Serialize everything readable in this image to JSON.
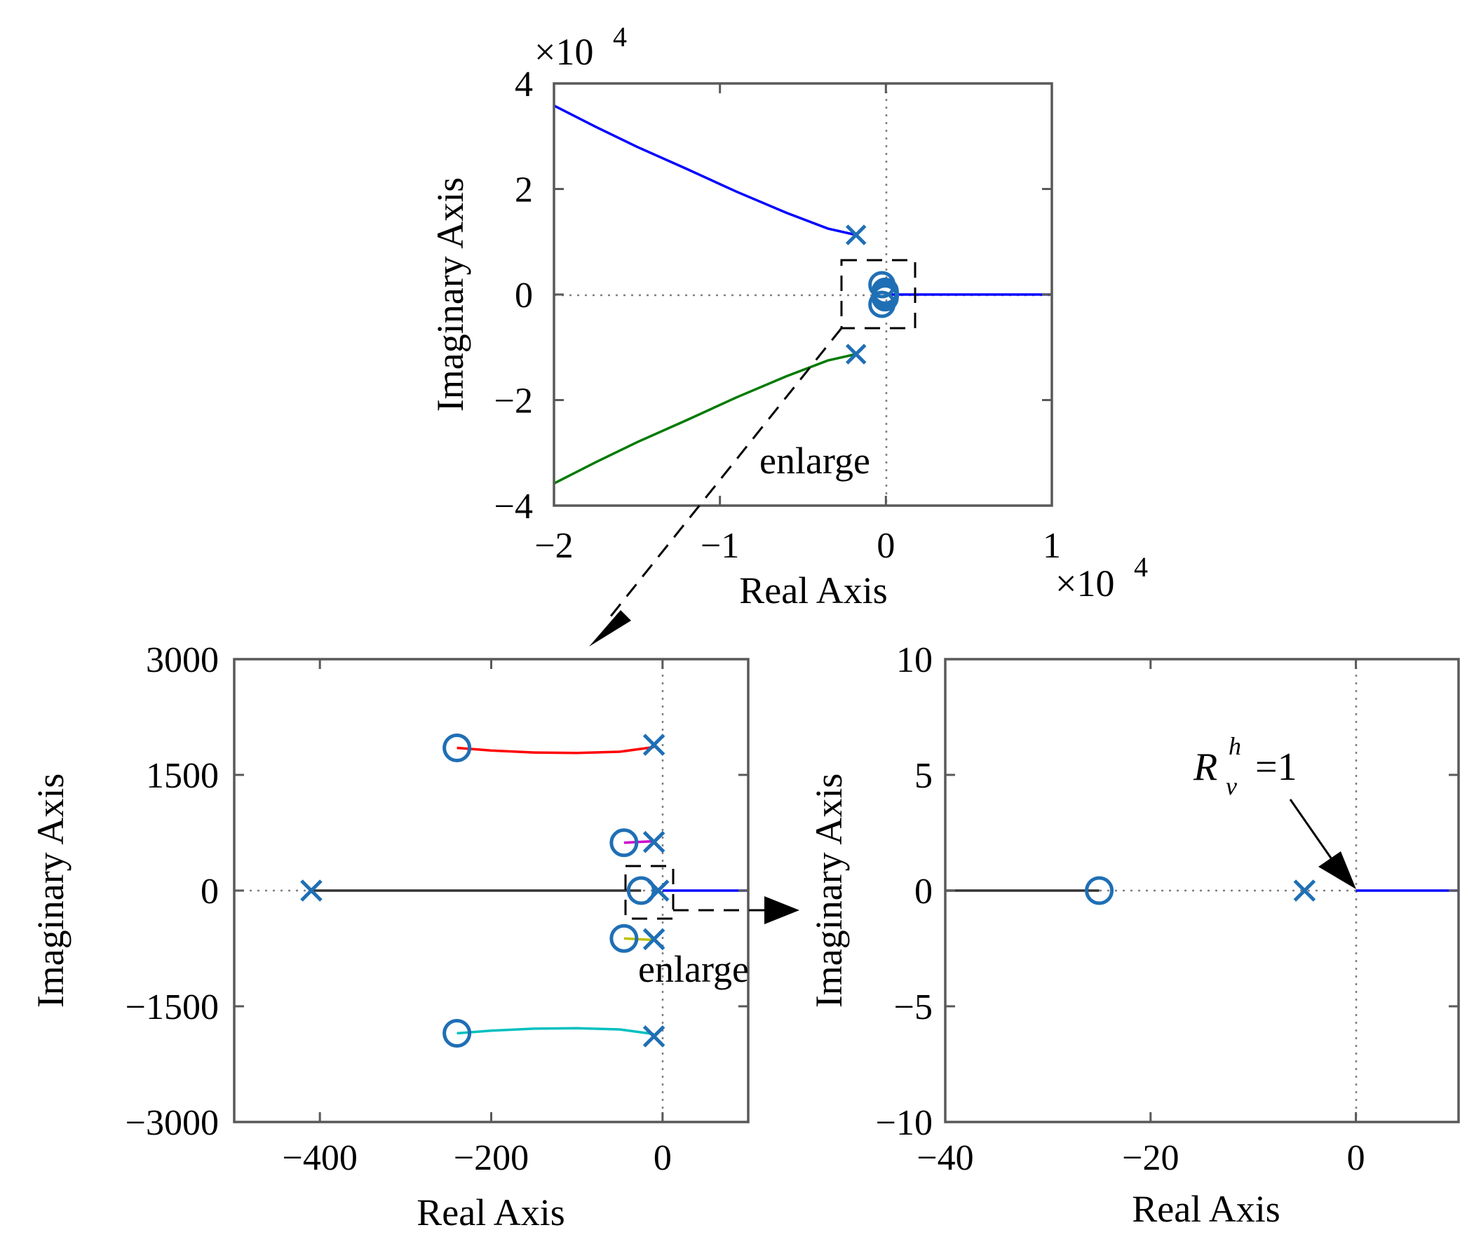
{
  "colors": {
    "marker": "#1f6fb5",
    "blue": "#0000ff",
    "green": "#007a00",
    "red": "#ff0000",
    "magenta": "#cc00cc",
    "yellow": "#bfbf00",
    "cyan": "#00bfbf",
    "black": "#333333"
  },
  "chart_data": [
    {
      "type": "root-locus",
      "id": "top",
      "xlabel": "Real Axis",
      "ylabel": "Imaginary Axis",
      "x_multiplier": "×10",
      "x_multiplier_exp": "4",
      "y_multiplier": "×10",
      "y_multiplier_exp": "4",
      "xlim": [
        -20000,
        10000
      ],
      "ylim": [
        -40000,
        40000
      ],
      "xticks": [
        -20000,
        -10000,
        0,
        10000
      ],
      "xtick_labels": [
        "−2",
        "−1",
        "0",
        "1"
      ],
      "yticks": [
        -40000,
        -20000,
        0,
        20000,
        40000
      ],
      "ytick_labels": [
        "−4",
        "−2",
        "0",
        "2",
        "4"
      ],
      "annotation": "enlarge",
      "series": [
        {
          "name": "upper branch",
          "color": "blue",
          "points": [
            [
              -1800,
              11300
            ],
            [
              -3500,
              12500
            ],
            [
              -6000,
              15500
            ],
            [
              -9000,
              19500
            ],
            [
              -12000,
              23800
            ],
            [
              -15000,
              28000
            ],
            [
              -17500,
              31800
            ],
            [
              -20000,
              35800
            ]
          ]
        },
        {
          "name": "lower branch",
          "color": "green",
          "points": [
            [
              -1800,
              -11300
            ],
            [
              -3500,
              -12500
            ],
            [
              -6000,
              -15500
            ],
            [
              -9000,
              -19500
            ],
            [
              -12000,
              -23800
            ],
            [
              -15000,
              -28000
            ],
            [
              -17500,
              -31800
            ],
            [
              -20000,
              -35800
            ]
          ]
        },
        {
          "name": "real-axis branch",
          "color": "blue",
          "points": [
            [
              0,
              0
            ],
            [
              10000,
              0
            ]
          ]
        }
      ],
      "poles": [
        [
          -1800,
          11300
        ],
        [
          -1800,
          -11300
        ]
      ],
      "zeros": [
        [
          -240,
          1860
        ],
        [
          -240,
          -1860
        ],
        [
          -45,
          620
        ],
        [
          -45,
          -620
        ],
        [
          -25,
          0
        ]
      ]
    },
    {
      "type": "root-locus",
      "id": "bottom-left",
      "xlabel": "Real Axis",
      "ylabel": "Imaginary Axis",
      "xlim": [
        -500,
        100
      ],
      "ylim": [
        -3000,
        3000
      ],
      "xticks": [
        -400,
        -200,
        0
      ],
      "xtick_labels": [
        "−400",
        "−200",
        "0"
      ],
      "yticks": [
        -3000,
        -1500,
        0,
        1500,
        3000
      ],
      "ytick_labels": [
        "−3000",
        "−1500",
        "0",
        "1500",
        "3000"
      ],
      "annotation": "enlarge",
      "series": [
        {
          "name": "red branch",
          "color": "red",
          "points": [
            [
              -240,
              1850
            ],
            [
              -200,
              1815
            ],
            [
              -150,
              1790
            ],
            [
              -100,
              1785
            ],
            [
              -50,
              1800
            ],
            [
              -10,
              1860
            ]
          ]
        },
        {
          "name": "cyan branch",
          "color": "cyan",
          "points": [
            [
              -240,
              -1850
            ],
            [
              -200,
              -1815
            ],
            [
              -150,
              -1790
            ],
            [
              -100,
              -1785
            ],
            [
              -50,
              -1800
            ],
            [
              -10,
              -1860
            ]
          ]
        },
        {
          "name": "magenta branch",
          "color": "magenta",
          "points": [
            [
              -45,
              620
            ],
            [
              -30,
              630
            ],
            [
              -10,
              640
            ]
          ]
        },
        {
          "name": "yellow branch",
          "color": "yellow",
          "points": [
            [
              -45,
              -620
            ],
            [
              -30,
              -630
            ],
            [
              -10,
              -640
            ]
          ]
        },
        {
          "name": "black branch",
          "color": "black",
          "points": [
            [
              -410,
              0
            ],
            [
              -25,
              0
            ]
          ]
        },
        {
          "name": "blue branch",
          "color": "blue",
          "points": [
            [
              0,
              0
            ],
            [
              100,
              0
            ]
          ]
        }
      ],
      "poles": [
        [
          -10,
          1890
        ],
        [
          -10,
          -1890
        ],
        [
          -10,
          630
        ],
        [
          -10,
          -630
        ],
        [
          -410,
          0
        ],
        [
          -5,
          0
        ]
      ],
      "zeros": [
        [
          -240,
          1850
        ],
        [
          -240,
          -1850
        ],
        [
          -45,
          620
        ],
        [
          -45,
          -620
        ],
        [
          -25,
          0
        ]
      ]
    },
    {
      "type": "root-locus",
      "id": "bottom-right",
      "xlabel": "Real Axis",
      "ylabel": "Imaginary Axis",
      "xlim": [
        -40,
        10
      ],
      "ylim": [
        -10,
        10
      ],
      "xticks": [
        -40,
        -20,
        0
      ],
      "xtick_labels": [
        "−40",
        "−20",
        "0"
      ],
      "yticks": [
        -10,
        -5,
        0,
        5,
        10
      ],
      "ytick_labels": [
        "−10",
        "−5",
        "0",
        "5",
        "10"
      ],
      "annotation": {
        "R": "R",
        "sub": "v",
        "sup": "h",
        "eq": "=1"
      },
      "series": [
        {
          "name": "black branch",
          "color": "black",
          "points": [
            [
              -40,
              0
            ],
            [
              -25,
              0
            ]
          ]
        },
        {
          "name": "blue branch",
          "color": "blue",
          "points": [
            [
              0,
              0
            ],
            [
              10,
              0
            ]
          ]
        }
      ],
      "poles": [
        [
          -5,
          0
        ]
      ],
      "zeros": [
        [
          -25,
          0
        ]
      ]
    }
  ]
}
